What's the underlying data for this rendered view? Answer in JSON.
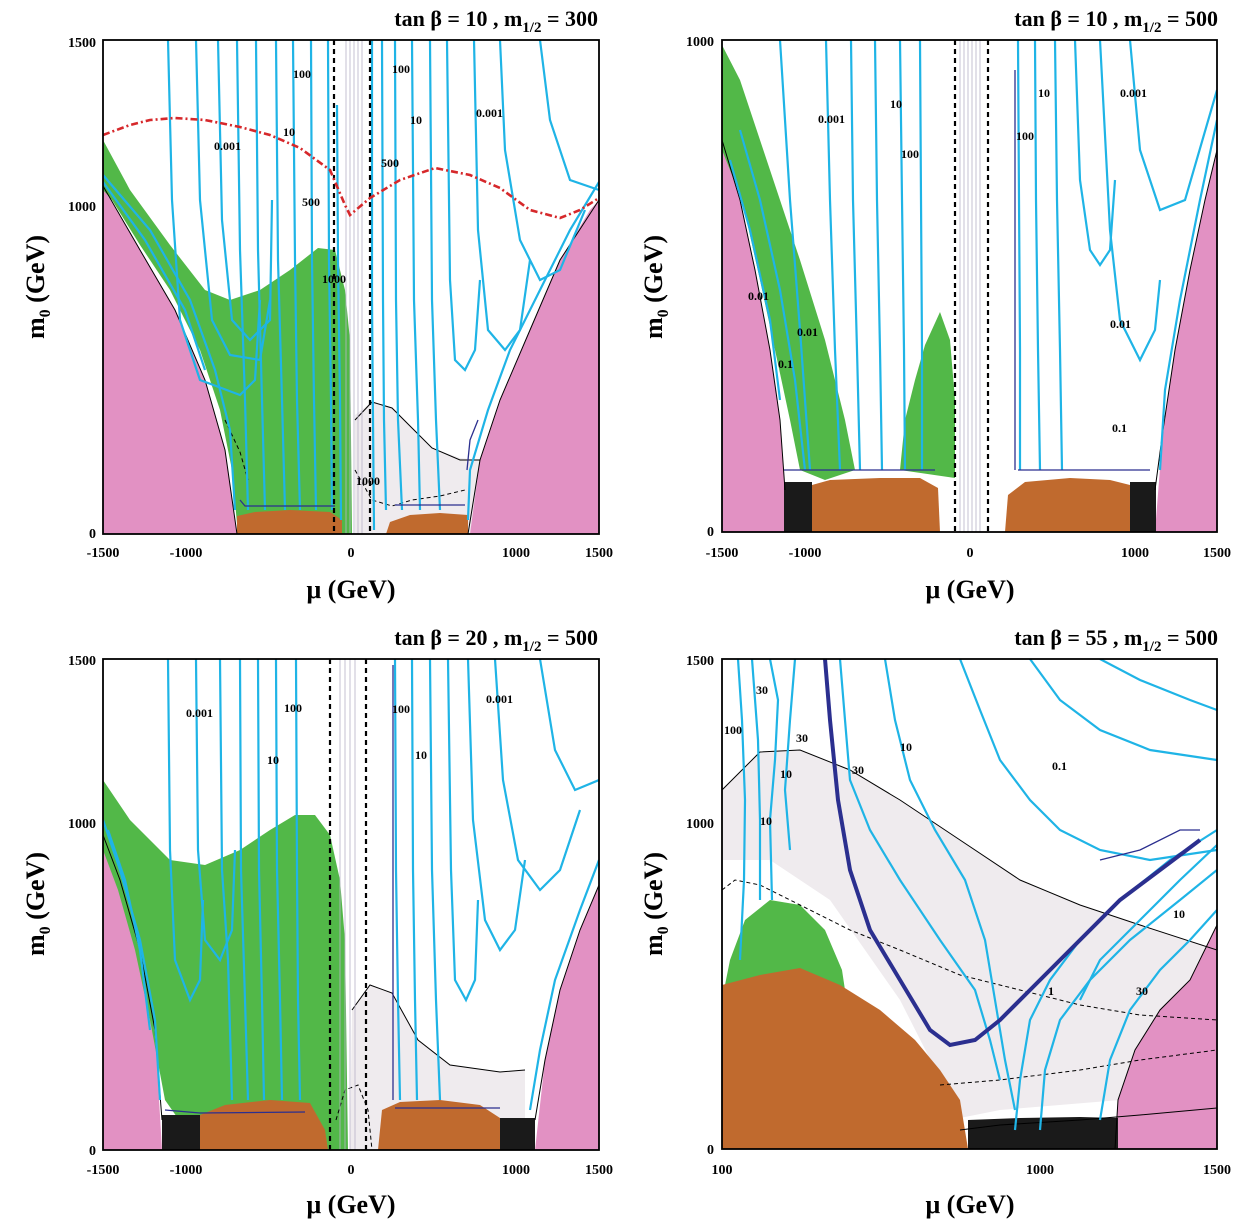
{
  "colors": {
    "pink": "#e291c3",
    "green": "#52b848",
    "brown": "#c06a2e",
    "black": "#1a1a1a",
    "grayshade": "#efebee",
    "cyan": "#1fb4e6",
    "navy": "#2b2f8f",
    "red": "#d6282b"
  },
  "chart_data": [
    {
      "type": "contour",
      "title_main": "tan β = 10 ,  m",
      "title_sub": "1/2",
      "title_end": " = 300",
      "xlabel": "μ (GeV)",
      "ylabel_main": "m",
      "ylabel_sub": "0",
      "ylabel_end": " (GeV)",
      "xlim": [
        -1500,
        1500
      ],
      "ylim": [
        0,
        1500
      ],
      "x_ticks": [
        "-1500",
        "-1000",
        "0",
        "1000",
        "1500"
      ],
      "y_ticks": [
        "0",
        "1000",
        "1500"
      ],
      "contour_labels": [
        "100",
        "100",
        "10",
        "10",
        "0.001",
        "0.001",
        "500",
        "500",
        "1000",
        "1000"
      ]
    },
    {
      "type": "contour",
      "title_main": "tan β = 10 ,  m",
      "title_sub": "1/2",
      "title_end": " = 500",
      "xlabel": "μ (GeV)",
      "ylabel_main": "m",
      "ylabel_sub": "0",
      "ylabel_end": " (GeV)",
      "xlim": [
        -1500,
        1500
      ],
      "ylim": [
        0,
        1000
      ],
      "x_ticks": [
        "-1500",
        "-1000",
        "0",
        "1000",
        "1500"
      ],
      "y_ticks": [
        "0",
        "1000"
      ],
      "contour_labels": [
        "0.001",
        "10",
        "100",
        "10",
        "0.001",
        "100",
        "0.01",
        "0.01",
        "0.1",
        "0.01",
        "0.1"
      ]
    },
    {
      "type": "contour",
      "title_main": "tan β = 20 ,  m",
      "title_sub": "1/2",
      "title_end": " = 500",
      "xlabel": "μ (GeV)",
      "ylabel_main": "m",
      "ylabel_sub": "0",
      "ylabel_end": " (GeV)",
      "xlim": [
        -1500,
        1500
      ],
      "ylim": [
        0,
        1500
      ],
      "x_ticks": [
        "-1500",
        "-1000",
        "0",
        "1000",
        "1500"
      ],
      "y_ticks": [
        "0",
        "1000",
        "1500"
      ],
      "contour_labels": [
        "0.001",
        "100",
        "10",
        "100",
        "10",
        "0.001"
      ]
    },
    {
      "type": "contour",
      "title_main": "tan β = 55 ,  m",
      "title_sub": "1/2",
      "title_end": " = 500",
      "xlabel": "μ (GeV)",
      "ylabel_main": "m",
      "ylabel_sub": "0",
      "ylabel_end": " (GeV)",
      "xlim": [
        100,
        1500
      ],
      "ylim": [
        0,
        1500
      ],
      "x_ticks": [
        "100",
        "1000",
        "1500"
      ],
      "y_ticks": [
        "0",
        "1000",
        "1500"
      ],
      "contour_labels": [
        "30",
        "100",
        "30",
        "10",
        "10",
        "30",
        "10",
        "0.1",
        "1",
        "10",
        "30"
      ]
    }
  ]
}
